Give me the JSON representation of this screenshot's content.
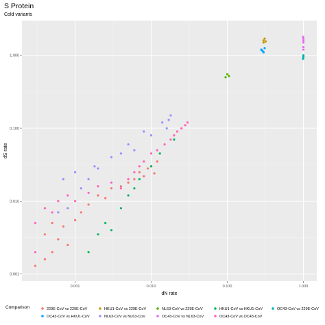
{
  "chart_data": {
    "type": "scatter",
    "title": "S Protein",
    "subtitle": "Cold variants",
    "xlabel": "dN rate",
    "ylabel": "dS rate",
    "x_scale": "log10",
    "y_scale": "log10",
    "xlim": [
      0.0002,
      1.5
    ],
    "ylim": [
      0.0008,
      3.0
    ],
    "x_ticks": [
      {
        "value": 0.001,
        "label": "0.001"
      },
      {
        "value": 0.01,
        "label": "0.010"
      },
      {
        "value": 0.1,
        "label": "0.100"
      },
      {
        "value": 1.0,
        "label": "1.000"
      }
    ],
    "y_ticks": [
      {
        "value": 0.001,
        "label": "0.001"
      },
      {
        "value": 0.01,
        "label": "0.010"
      },
      {
        "value": 0.1,
        "label": "0.100"
      },
      {
        "value": 1.0,
        "label": "1.000"
      }
    ],
    "grid": true,
    "legend_title": "Comparison",
    "legend_position": "bottom",
    "series": [
      {
        "name": "229E-CoV vs 229E-CoV",
        "color": "#F8766D",
        "points": [
          [
            0.0003,
            0.0013
          ],
          [
            0.0004,
            0.0016
          ],
          [
            0.0004,
            0.0035
          ],
          [
            0.0005,
            0.002
          ],
          [
            0.0005,
            0.005
          ],
          [
            0.0006,
            0.003
          ],
          [
            0.0007,
            0.0045
          ],
          [
            0.0008,
            0.0025
          ],
          [
            0.001,
            0.0055
          ],
          [
            0.0012,
            0.007
          ],
          [
            0.0015,
            0.009
          ],
          [
            0.002,
            0.012
          ],
          [
            0.0025,
            0.011
          ],
          [
            0.003,
            0.015
          ],
          [
            0.004,
            0.016
          ],
          [
            0.005,
            0.018
          ],
          [
            0.006,
            0.02
          ],
          [
            0.007,
            0.025
          ],
          [
            0.008,
            0.022
          ],
          [
            0.009,
            0.028
          ],
          [
            0.01,
            0.03
          ],
          [
            0.011,
            0.024
          ],
          [
            0.012,
            0.035
          ]
        ]
      },
      {
        "name": "HKU1-CoV vs 229E-CoV",
        "color": "#C49A00",
        "points": [
          [
            0.3,
            1.6
          ],
          [
            0.31,
            1.7
          ],
          [
            0.32,
            1.55
          ],
          [
            0.3,
            1.5
          ]
        ]
      },
      {
        "name": "NL63-CoV vs 229E-CoV",
        "color": "#53B400",
        "points": [
          [
            0.1,
            0.55
          ],
          [
            0.105,
            0.52
          ],
          [
            0.095,
            0.5
          ]
        ]
      },
      {
        "name": "HKU1-CoV vs HKU1-CoV",
        "color": "#00B65F",
        "points": [
          [
            0.0015,
            0.002
          ],
          [
            0.002,
            0.0035
          ],
          [
            0.0025,
            0.005
          ],
          [
            0.003,
            0.004
          ],
          [
            0.004,
            0.008
          ],
          [
            0.005,
            0.012
          ],
          [
            0.006,
            0.015
          ],
          [
            0.007,
            0.02
          ],
          [
            0.01,
            0.03
          ],
          [
            0.013,
            0.045
          ],
          [
            0.02,
            0.07
          ]
        ]
      },
      {
        "name": "OC43-CoV vs 229E-CoV",
        "color": "#00B2B2",
        "points": [
          [
            0.28,
            1.2
          ],
          [
            0.3,
            1.1
          ],
          [
            0.29,
            1.15
          ],
          [
            1.0,
            0.95
          ],
          [
            1.0,
            1.0
          ],
          [
            0.99,
            0.9
          ]
        ]
      },
      {
        "name": "OC43-CoV vs HKU1-CoV",
        "color": "#00A6FF",
        "points": [
          [
            0.28,
            1.2
          ],
          [
            0.3,
            1.1
          ],
          [
            0.29,
            1.15
          ],
          [
            0.31,
            1.25
          ]
        ]
      },
      {
        "name": "NL63-CoV vs NL63-CoV",
        "color": "#9590FF",
        "points": [
          [
            0.0006,
            0.007
          ],
          [
            0.0007,
            0.02
          ],
          [
            0.0008,
            0.008
          ],
          [
            0.001,
            0.025
          ],
          [
            0.0012,
            0.015
          ],
          [
            0.0015,
            0.02
          ],
          [
            0.0018,
            0.03
          ],
          [
            0.002,
            0.028
          ],
          [
            0.003,
            0.04
          ],
          [
            0.004,
            0.045
          ],
          [
            0.005,
            0.06
          ],
          [
            0.006,
            0.05
          ],
          [
            0.008,
            0.09
          ],
          [
            0.01,
            0.08
          ],
          [
            0.014,
            0.12
          ],
          [
            0.016,
            0.1
          ],
          [
            0.017,
            0.13
          ],
          [
            0.018,
            0.15
          ]
        ]
      },
      {
        "name": "OC43-CoV vs NL63-CoV",
        "color": "#E76BF3",
        "points": [
          [
            1.0,
            1.6
          ],
          [
            1.0,
            1.5
          ],
          [
            1.0,
            1.7
          ],
          [
            0.99,
            1.8
          ],
          [
            1.0,
            1.3
          ],
          [
            1.0,
            1.2
          ]
        ]
      },
      {
        "name": "OC43-CoV vs OC43-CoV",
        "color": "#FF62BC",
        "points": [
          [
            0.0003,
            0.002
          ],
          [
            0.0003,
            0.005
          ],
          [
            0.0004,
            0.008
          ],
          [
            0.0005,
            0.007
          ],
          [
            0.0006,
            0.01
          ],
          [
            0.0008,
            0.012
          ],
          [
            0.001,
            0.01
          ],
          [
            0.0015,
            0.013
          ],
          [
            0.002,
            0.016
          ],
          [
            0.003,
            0.018
          ],
          [
            0.004,
            0.015
          ],
          [
            0.005,
            0.02
          ],
          [
            0.006,
            0.025
          ],
          [
            0.007,
            0.03
          ],
          [
            0.008,
            0.035
          ],
          [
            0.01,
            0.045
          ],
          [
            0.012,
            0.05
          ],
          [
            0.015,
            0.06
          ],
          [
            0.018,
            0.07
          ],
          [
            0.02,
            0.08
          ],
          [
            0.022,
            0.09
          ],
          [
            0.025,
            0.1
          ],
          [
            0.028,
            0.11
          ],
          [
            0.03,
            0.12
          ]
        ]
      }
    ]
  }
}
